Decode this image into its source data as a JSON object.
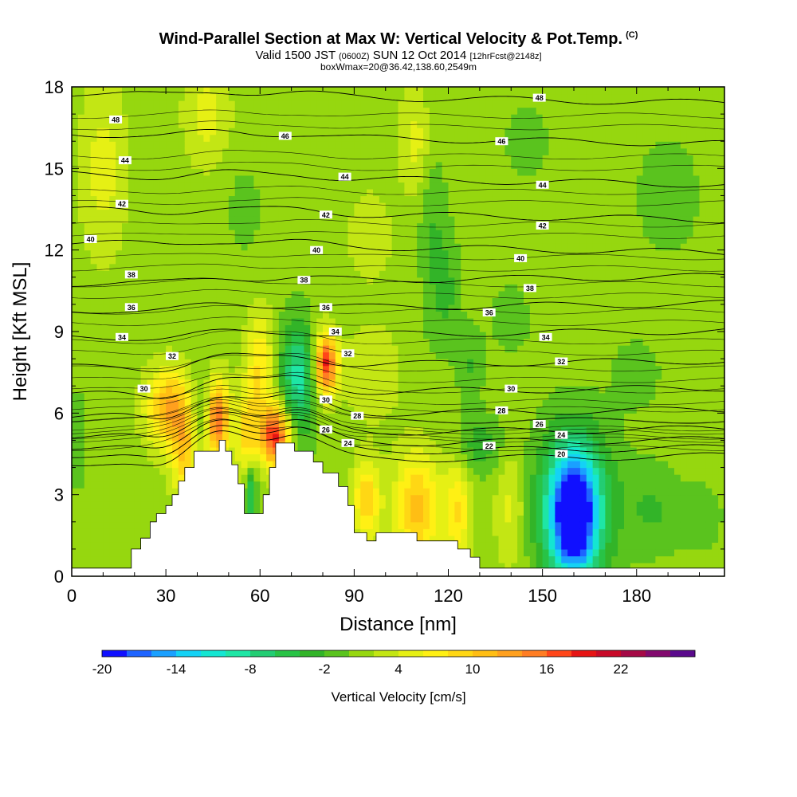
{
  "title": {
    "main": "Wind-Parallel Section at Max W: Vertical Velocity & Pot.Temp.",
    "copyright": "(C)",
    "valid_prefix": "Valid 1500 JST",
    "valid_utc": "(0600Z)",
    "valid_date": "SUN 12 Oct 2014",
    "forecast": "[12hrFcst@2148z]",
    "box_info": "boxWmax=20@36.42,138.60,2549m"
  },
  "colorbar": {
    "label": "Vertical Velocity [cm/s]",
    "tick_labels": [
      "-20",
      "-14",
      "-8",
      "-2",
      "4",
      "10",
      "16",
      "22"
    ],
    "levels": [
      -20,
      -18,
      -16,
      -14,
      -12,
      -10,
      -8,
      -6,
      -4,
      -2,
      0,
      2,
      4,
      6,
      8,
      10,
      12,
      14,
      16,
      18,
      20,
      22,
      24,
      26
    ],
    "colors": [
      "#1010ff",
      "#1e64ff",
      "#1aa0ff",
      "#14d2f5",
      "#14e6d2",
      "#1ee6a5",
      "#23cd73",
      "#28c346",
      "#32b428",
      "#5ac31e",
      "#96d70f",
      "#c3e614",
      "#e6f014",
      "#fff014",
      "#ffd714",
      "#ffbe14",
      "#ffa01e",
      "#ff7d23",
      "#ff4619",
      "#e61414",
      "#c80a28",
      "#a50a46",
      "#820a6e",
      "#5a0a8c"
    ]
  },
  "chart_data": {
    "type": "heatmap",
    "title": "Wind-Parallel Section at Max W: Vertical Velocity & Pot.Temp.",
    "xlabel": "Distance [nm]",
    "ylabel": "Height [Kft MSL]",
    "xlim": [
      0,
      208
    ],
    "ylim": [
      0,
      18
    ],
    "xticks": [
      0,
      30,
      60,
      90,
      120,
      150,
      180
    ],
    "yticks": [
      0,
      3,
      6,
      9,
      12,
      15,
      18
    ],
    "colorbar_label": "Vertical Velocity [cm/s]",
    "max_w": 20,
    "field_units": "cm/s",
    "velocity_features": [
      {
        "x": 160,
        "y": 2.2,
        "w": -18,
        "sx": 5,
        "sy": 1.6
      },
      {
        "x": 160,
        "y": 2.6,
        "w": -10,
        "sx": 9,
        "sy": 2.0
      },
      {
        "x": 46,
        "y": 5.8,
        "w": 16,
        "sx": 3,
        "sy": 1.0
      },
      {
        "x": 65,
        "y": 5.2,
        "w": 18,
        "sx": 3.5,
        "sy": 0.8
      },
      {
        "x": 81,
        "y": 7.8,
        "w": 18,
        "sx": 2.5,
        "sy": 0.8
      },
      {
        "x": 31,
        "y": 6.2,
        "w": 11,
        "sx": 5,
        "sy": 1.0
      },
      {
        "x": 110,
        "y": 2.5,
        "w": 10,
        "sx": 5,
        "sy": 1.4
      },
      {
        "x": 94,
        "y": 2.8,
        "w": 9,
        "sx": 3,
        "sy": 1.0
      },
      {
        "x": 123,
        "y": 2.5,
        "w": 7,
        "sx": 3,
        "sy": 1.3
      },
      {
        "x": 140,
        "y": 2.6,
        "w": 4,
        "sx": 3.5,
        "sy": 1.6
      },
      {
        "x": 72,
        "y": 7.2,
        "w": -10,
        "sx": 4,
        "sy": 1.5
      },
      {
        "x": 42,
        "y": 6.0,
        "w": -7,
        "sx": 2.5,
        "sy": 1.0
      },
      {
        "x": 57,
        "y": 3.0,
        "w": -8,
        "sx": 1.5,
        "sy": 1.0
      },
      {
        "x": 60,
        "y": 7.8,
        "w": 7,
        "sx": 3,
        "sy": 1.3
      },
      {
        "x": 36,
        "y": 4.5,
        "w": 8,
        "sx": 3,
        "sy": 1.2
      },
      {
        "x": 56,
        "y": 5.2,
        "w": 8,
        "sx": 2.5,
        "sy": 1.2
      },
      {
        "x": 10,
        "y": 15,
        "w": 4,
        "sx": 5,
        "sy": 2.2
      },
      {
        "x": 43,
        "y": 17,
        "w": 4,
        "sx": 5,
        "sy": 1.3
      },
      {
        "x": 110,
        "y": 16,
        "w": 4,
        "sx": 4,
        "sy": 1.3
      },
      {
        "x": 96,
        "y": 7.5,
        "w": 3,
        "sx": 6,
        "sy": 1.2
      },
      {
        "x": 115,
        "y": 13,
        "w": -3,
        "sx": 3,
        "sy": 3.0
      },
      {
        "x": 120,
        "y": 10.5,
        "w": -3,
        "sx": 3,
        "sy": 1.5
      },
      {
        "x": 127,
        "y": 7.8,
        "w": -3,
        "sx": 3,
        "sy": 1.0
      },
      {
        "x": 185,
        "y": 2.5,
        "w": -3,
        "sx": 6,
        "sy": 1.2
      },
      {
        "x": 200,
        "y": 2.2,
        "w": -2,
        "sx": 6,
        "sy": 1.0
      },
      {
        "x": 75,
        "y": 1.5,
        "w": -3,
        "sx": 4,
        "sy": 1.0
      },
      {
        "x": 140,
        "y": 9.5,
        "w": -2,
        "sx": 5,
        "sy": 1.0
      },
      {
        "x": 180,
        "y": 7.5,
        "w": -2,
        "sx": 6,
        "sy": 1.0
      },
      {
        "x": 190,
        "y": 14,
        "w": -2,
        "sx": 8,
        "sy": 1.8
      },
      {
        "x": 55,
        "y": 13.5,
        "w": -2,
        "sx": 4,
        "sy": 1.2
      },
      {
        "x": 145,
        "y": 16,
        "w": -2,
        "sx": 6,
        "sy": 1.0
      },
      {
        "x": 2,
        "y": 5,
        "w": -1.5,
        "sx": 3,
        "sy": 2.0
      },
      {
        "x": 95,
        "y": 12.5,
        "w": 2.5,
        "sx": 5,
        "sy": 1.2
      },
      {
        "x": 130,
        "y": 4.8,
        "w": -4,
        "sx": 6,
        "sy": 0.8
      }
    ],
    "background_w": 1,
    "terrain": [
      [
        0,
        0.3
      ],
      [
        19,
        0.3
      ],
      [
        19,
        1.0
      ],
      [
        22,
        1.0
      ],
      [
        22,
        1.4
      ],
      [
        25,
        1.4
      ],
      [
        25,
        2.0
      ],
      [
        27,
        2.0
      ],
      [
        27,
        2.3
      ],
      [
        30,
        2.3
      ],
      [
        30,
        2.6
      ],
      [
        32,
        2.6
      ],
      [
        32,
        3.0
      ],
      [
        34,
        3.0
      ],
      [
        34,
        3.5
      ],
      [
        36,
        3.5
      ],
      [
        36,
        4.0
      ],
      [
        39,
        4.0
      ],
      [
        39,
        4.6
      ],
      [
        47,
        4.6
      ],
      [
        47,
        5.0
      ],
      [
        49,
        5.0
      ],
      [
        49,
        4.6
      ],
      [
        51,
        4.6
      ],
      [
        51,
        4.1
      ],
      [
        53,
        4.1
      ],
      [
        53,
        3.4
      ],
      [
        55,
        3.4
      ],
      [
        55,
        2.3
      ],
      [
        61,
        2.3
      ],
      [
        61,
        3.0
      ],
      [
        63,
        3.0
      ],
      [
        63,
        4.0
      ],
      [
        65,
        4.0
      ],
      [
        65,
        4.9
      ],
      [
        71,
        4.9
      ],
      [
        71,
        4.6
      ],
      [
        77,
        4.6
      ],
      [
        77,
        4.2
      ],
      [
        80,
        4.2
      ],
      [
        80,
        3.8
      ],
      [
        85,
        3.8
      ],
      [
        85,
        3.3
      ],
      [
        88,
        3.3
      ],
      [
        88,
        2.6
      ],
      [
        90,
        2.6
      ],
      [
        90,
        1.6
      ],
      [
        94,
        1.6
      ],
      [
        94,
        1.3
      ],
      [
        97,
        1.3
      ],
      [
        97,
        1.6
      ],
      [
        110,
        1.6
      ],
      [
        110,
        1.3
      ],
      [
        123,
        1.3
      ],
      [
        123,
        1.0
      ],
      [
        127,
        1.0
      ],
      [
        127,
        0.7
      ],
      [
        130,
        0.7
      ],
      [
        130,
        0.3
      ],
      [
        208,
        0.3
      ]
    ],
    "isentropes": [
      {
        "theta": 20,
        "base": 4.3
      },
      {
        "theta": 22,
        "base": 4.6
      },
      {
        "theta": 24,
        "base": 4.9
      },
      {
        "theta": 26,
        "base": 5.3
      },
      {
        "theta": 28,
        "base": 6.0
      },
      {
        "theta": 30,
        "base": 6.8
      },
      {
        "theta": 32,
        "base": 7.8
      },
      {
        "theta": 34,
        "base": 8.9
      },
      {
        "theta": 36,
        "base": 9.9
      },
      {
        "theta": 38,
        "base": 10.9
      },
      {
        "theta": 40,
        "base": 12.1
      },
      {
        "theta": 42,
        "base": 13.3
      },
      {
        "theta": 44,
        "base": 14.6
      },
      {
        "theta": 46,
        "base": 16.1
      },
      {
        "theta": 48,
        "base": 17.6
      }
    ],
    "contour_labels": [
      {
        "text": "48",
        "x": 14,
        "y": 16.8
      },
      {
        "text": "46",
        "x": 68,
        "y": 16.2
      },
      {
        "text": "46",
        "x": 137,
        "y": 16.0
      },
      {
        "text": "48",
        "x": 149,
        "y": 17.6
      },
      {
        "text": "44",
        "x": 17,
        "y": 15.3
      },
      {
        "text": "44",
        "x": 87,
        "y": 14.7
      },
      {
        "text": "44",
        "x": 150,
        "y": 14.4
      },
      {
        "text": "42",
        "x": 16,
        "y": 13.7
      },
      {
        "text": "42",
        "x": 81,
        "y": 13.3
      },
      {
        "text": "42",
        "x": 150,
        "y": 12.9
      },
      {
        "text": "40",
        "x": 6,
        "y": 12.4
      },
      {
        "text": "40",
        "x": 78,
        "y": 12.0
      },
      {
        "text": "40",
        "x": 143,
        "y": 11.7
      },
      {
        "text": "38",
        "x": 19,
        "y": 11.1
      },
      {
        "text": "38",
        "x": 74,
        "y": 10.9
      },
      {
        "text": "38",
        "x": 146,
        "y": 10.6
      },
      {
        "text": "36",
        "x": 19,
        "y": 9.9
      },
      {
        "text": "36",
        "x": 81,
        "y": 9.9
      },
      {
        "text": "36",
        "x": 133,
        "y": 9.7
      },
      {
        "text": "34",
        "x": 16,
        "y": 8.8
      },
      {
        "text": "34",
        "x": 84,
        "y": 9.0
      },
      {
        "text": "34",
        "x": 151,
        "y": 8.8
      },
      {
        "text": "32",
        "x": 32,
        "y": 8.1
      },
      {
        "text": "32",
        "x": 88,
        "y": 8.2
      },
      {
        "text": "32",
        "x": 156,
        "y": 7.9
      },
      {
        "text": "30",
        "x": 23,
        "y": 6.9
      },
      {
        "text": "30",
        "x": 81,
        "y": 6.5
      },
      {
        "text": "30",
        "x": 140,
        "y": 6.9
      },
      {
        "text": "28",
        "x": 91,
        "y": 5.9
      },
      {
        "text": "28",
        "x": 137,
        "y": 6.1
      },
      {
        "text": "26",
        "x": 81,
        "y": 5.4
      },
      {
        "text": "26",
        "x": 149,
        "y": 5.6
      },
      {
        "text": "24",
        "x": 88,
        "y": 4.9
      },
      {
        "text": "24",
        "x": 156,
        "y": 5.2
      },
      {
        "text": "22",
        "x": 133,
        "y": 4.8
      },
      {
        "text": "20",
        "x": 156,
        "y": 4.5
      }
    ]
  }
}
